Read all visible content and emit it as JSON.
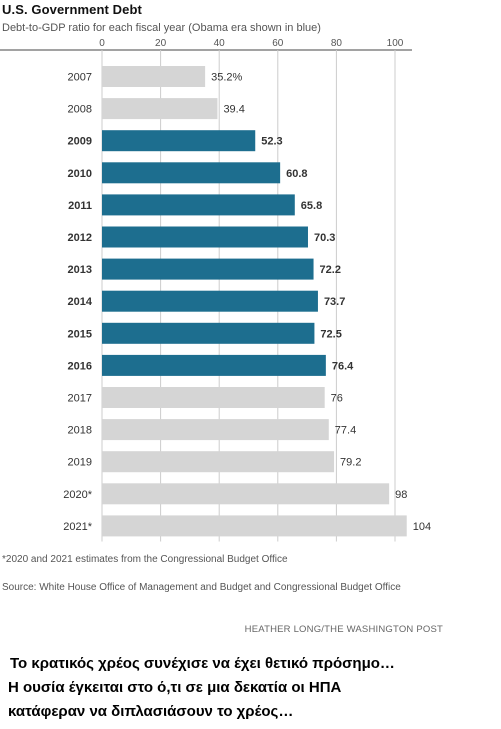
{
  "title": "U.S. Government Debt",
  "subtitle": "Debt-to-GDP ratio for each fiscal year (Obama era shown in blue)",
  "footnote": "*2020 and 2021 estimates from the Congressional Budget Office",
  "source": "Source: White House Office of Management and Budget and Congressional Budget Office",
  "credit": "HEATHER LONG/THE WASHINGTON POST",
  "caption": {
    "line1": "Το κρατικός χρέος συνέχισε να έχει θετικό πρόσημο…",
    "line2": "Η ουσία έγκειται στο ό,τι σε μια δεκατία οι ΗΠΑ",
    "line3": "κατάφεραν να διπλασιάσουν το χρέος…"
  },
  "chart_data": {
    "type": "bar",
    "orientation": "horizontal",
    "categories": [
      "2007",
      "2008",
      "2009",
      "2010",
      "2011",
      "2012",
      "2013",
      "2014",
      "2015",
      "2016",
      "2017",
      "2018",
      "2019",
      "2020*",
      "2021*"
    ],
    "values": [
      35.2,
      39.4,
      52.3,
      60.8,
      65.8,
      70.3,
      72.2,
      73.7,
      72.5,
      76.4,
      76,
      77.4,
      79.2,
      98,
      104
    ],
    "value_labels": [
      "35.2%",
      "39.4",
      "52.3",
      "60.8",
      "65.8",
      "70.3",
      "72.2",
      "73.7",
      "72.5",
      "76.4",
      "76",
      "77.4",
      "79.2",
      "98",
      "104"
    ],
    "highlight": [
      false,
      false,
      true,
      true,
      true,
      true,
      true,
      true,
      true,
      true,
      false,
      false,
      false,
      false,
      false
    ],
    "ticks": [
      0,
      20,
      40,
      60,
      80,
      100
    ],
    "xlim": [
      0,
      100
    ],
    "xaxis_position": "top",
    "grid": true,
    "colors": {
      "highlight": "#1d6e8f",
      "default": "#d5d5d5",
      "grid": "#cccccc"
    }
  }
}
